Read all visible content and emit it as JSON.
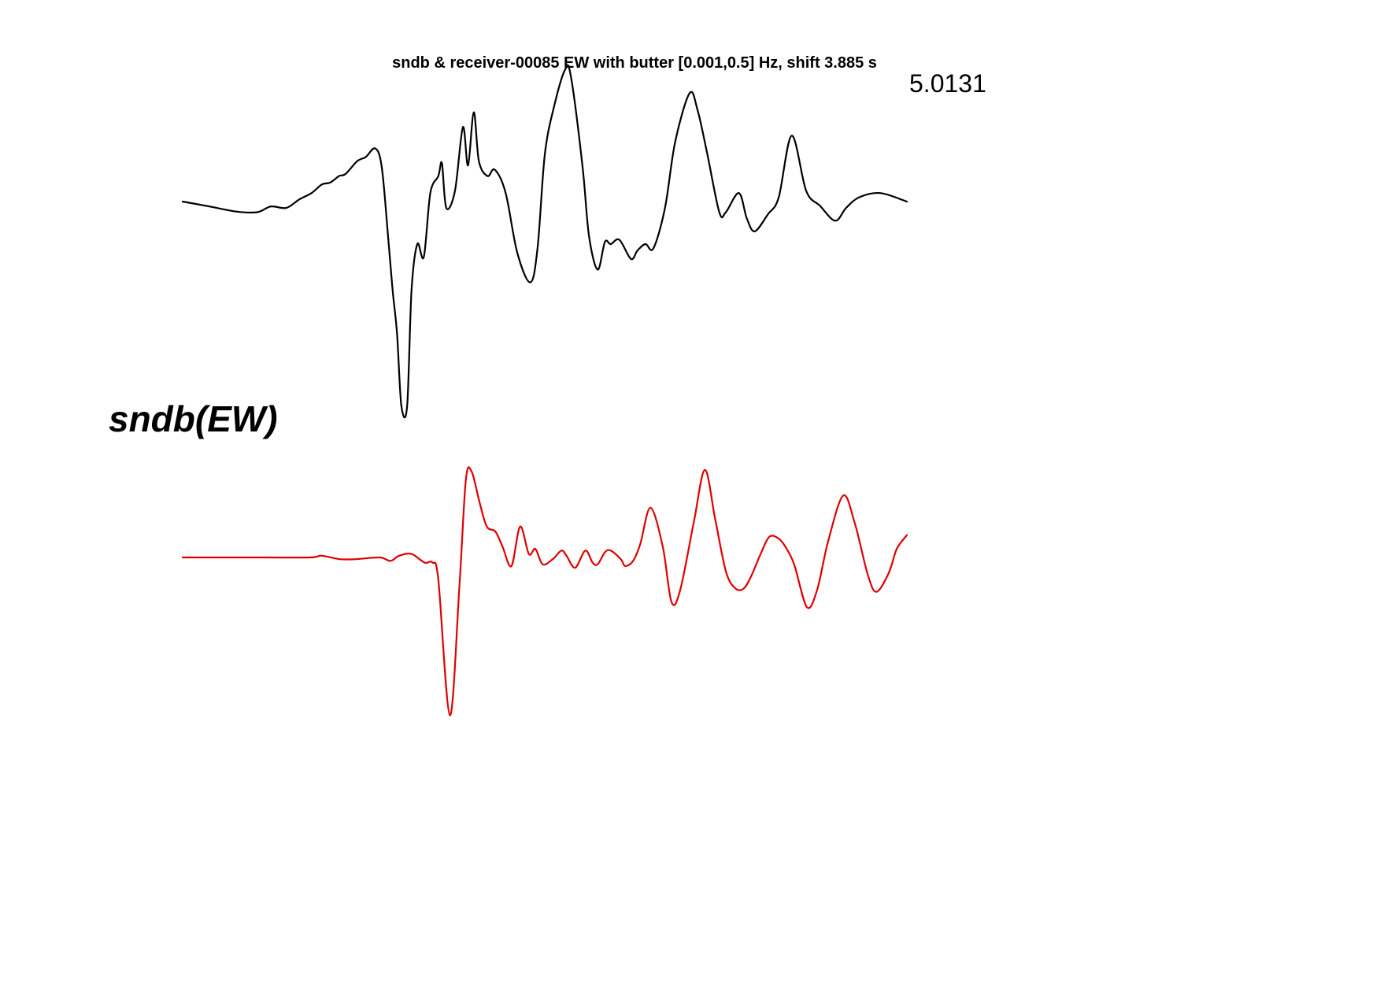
{
  "figure": {
    "title": "sndb & receiver-00085 EW with butter [0.001,0.5] Hz, shift 3.885 s",
    "peak_label": "5.0131",
    "station_label": "sndb(EW)"
  },
  "chart_data": {
    "type": "line",
    "title": "sndb & receiver-00085 EW with butter [0.001,0.5] Hz, shift 3.885 s",
    "xlabel": "",
    "ylabel": "",
    "axes_visible": false,
    "grid": false,
    "legend": "none",
    "annotations": [
      "5.0131",
      "sndb(EW)"
    ],
    "x_range": [
      0,
      100
    ],
    "series": [
      {
        "color": "#000000",
        "amplitude_range": [
          -1,
          1
        ],
        "points": [
          [
            0.0,
            0.0
          ],
          [
            3.7,
            -0.023
          ],
          [
            7.4,
            -0.047
          ],
          [
            10.3,
            -0.05
          ],
          [
            12.2,
            -0.023
          ],
          [
            14.3,
            -0.03
          ],
          [
            16.1,
            0.01
          ],
          [
            17.8,
            0.04
          ],
          [
            19.2,
            0.08
          ],
          [
            20.4,
            0.09
          ],
          [
            21.6,
            0.12
          ],
          [
            22.5,
            0.13
          ],
          [
            24.1,
            0.19
          ],
          [
            25.3,
            0.21
          ],
          [
            26.6,
            0.25
          ],
          [
            27.5,
            0.16
          ],
          [
            28.4,
            -0.18
          ],
          [
            29.0,
            -0.42
          ],
          [
            29.6,
            -0.62
          ],
          [
            30.2,
            -0.96
          ],
          [
            31.0,
            -0.96
          ],
          [
            31.6,
            -0.42
          ],
          [
            32.4,
            -0.2
          ],
          [
            33.3,
            -0.26
          ],
          [
            34.2,
            0.04
          ],
          [
            35.3,
            0.12
          ],
          [
            35.8,
            0.18
          ],
          [
            36.4,
            -0.03
          ],
          [
            37.6,
            0.05
          ],
          [
            38.7,
            0.35
          ],
          [
            39.4,
            0.17
          ],
          [
            40.2,
            0.42
          ],
          [
            40.9,
            0.19
          ],
          [
            42.1,
            0.12
          ],
          [
            43.1,
            0.15
          ],
          [
            44.6,
            0.04
          ],
          [
            46.2,
            -0.24
          ],
          [
            48.0,
            -0.38
          ],
          [
            49.0,
            -0.22
          ],
          [
            50.0,
            0.22
          ],
          [
            51.3,
            0.45
          ],
          [
            52.8,
            0.62
          ],
          [
            53.6,
            0.59
          ],
          [
            55.2,
            0.17
          ],
          [
            56.1,
            -0.16
          ],
          [
            57.3,
            -0.32
          ],
          [
            58.3,
            -0.19
          ],
          [
            59.1,
            -0.2
          ],
          [
            60.3,
            -0.18
          ],
          [
            61.9,
            -0.27
          ],
          [
            62.8,
            -0.23
          ],
          [
            63.9,
            -0.2
          ],
          [
            65.0,
            -0.22
          ],
          [
            66.6,
            -0.03
          ],
          [
            68.0,
            0.28
          ],
          [
            70.0,
            0.51
          ],
          [
            71.1,
            0.43
          ],
          [
            72.4,
            0.23
          ],
          [
            74.1,
            -0.05
          ],
          [
            75.0,
            -0.05
          ],
          [
            76.8,
            0.04
          ],
          [
            77.9,
            -0.08
          ],
          [
            79.0,
            -0.14
          ],
          [
            80.8,
            -0.06
          ],
          [
            82.3,
            0.02
          ],
          [
            84.1,
            0.31
          ],
          [
            86.1,
            0.05
          ],
          [
            88.0,
            -0.02
          ],
          [
            90.1,
            -0.09
          ],
          [
            91.6,
            -0.03
          ],
          [
            93.4,
            0.02
          ],
          [
            96.3,
            0.04
          ],
          [
            100.0,
            0.0
          ]
        ]
      },
      {
        "color": "#e00000",
        "amplitude_range": [
          -1,
          1
        ],
        "points": [
          [
            0.0,
            0.0
          ],
          [
            11.0,
            0.0
          ],
          [
            17.6,
            0.0
          ],
          [
            19.2,
            0.01
          ],
          [
            21.7,
            -0.01
          ],
          [
            23.9,
            -0.01
          ],
          [
            27.2,
            0.0
          ],
          [
            28.7,
            -0.02
          ],
          [
            29.9,
            0.01
          ],
          [
            31.6,
            0.02
          ],
          [
            33.4,
            -0.03
          ],
          [
            34.5,
            -0.03
          ],
          [
            35.3,
            -0.13
          ],
          [
            36.9,
            -0.92
          ],
          [
            38.2,
            -0.18
          ],
          [
            39.1,
            0.45
          ],
          [
            39.9,
            0.5
          ],
          [
            41.0,
            0.32
          ],
          [
            42.0,
            0.18
          ],
          [
            43.2,
            0.15
          ],
          [
            44.2,
            0.06
          ],
          [
            45.4,
            -0.05
          ],
          [
            46.6,
            0.18
          ],
          [
            47.8,
            0.02
          ],
          [
            48.7,
            0.05
          ],
          [
            49.7,
            -0.04
          ],
          [
            51.1,
            -0.01
          ],
          [
            52.3,
            0.04
          ],
          [
            53.0,
            0.01
          ],
          [
            54.2,
            -0.06
          ],
          [
            55.6,
            0.04
          ],
          [
            56.6,
            -0.03
          ],
          [
            57.3,
            -0.04
          ],
          [
            58.3,
            0.03
          ],
          [
            59.1,
            0.04
          ],
          [
            60.5,
            -0.01
          ],
          [
            61.1,
            -0.05
          ],
          [
            62.2,
            -0.02
          ],
          [
            63.2,
            0.08
          ],
          [
            64.6,
            0.29
          ],
          [
            66.3,
            0.06
          ],
          [
            67.5,
            -0.26
          ],
          [
            68.7,
            -0.19
          ],
          [
            70.6,
            0.21
          ],
          [
            72.1,
            0.51
          ],
          [
            73.5,
            0.23
          ],
          [
            75.0,
            -0.08
          ],
          [
            76.3,
            -0.18
          ],
          [
            77.5,
            -0.18
          ],
          [
            78.6,
            -0.1
          ],
          [
            79.8,
            0.02
          ],
          [
            81.0,
            0.12
          ],
          [
            82.3,
            0.11
          ],
          [
            83.4,
            0.05
          ],
          [
            84.5,
            -0.05
          ],
          [
            86.2,
            -0.29
          ],
          [
            87.6,
            -0.19
          ],
          [
            89.1,
            0.09
          ],
          [
            91.2,
            0.36
          ],
          [
            92.8,
            0.2
          ],
          [
            94.6,
            -0.1
          ],
          [
            95.8,
            -0.2
          ],
          [
            97.5,
            -0.09
          ],
          [
            98.6,
            0.05
          ],
          [
            100.0,
            0.13
          ]
        ]
      }
    ]
  }
}
